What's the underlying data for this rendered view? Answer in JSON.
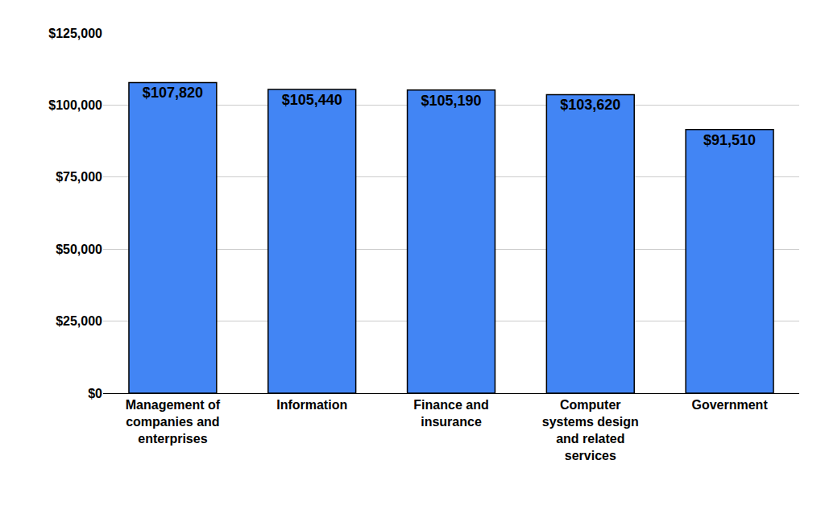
{
  "chart_data": {
    "type": "bar",
    "categories": [
      "Management of companies and enterprises",
      "Information",
      "Finance and insurance",
      "Computer systems design and related services",
      "Government"
    ],
    "values": [
      107820,
      105440,
      105190,
      103620,
      91510
    ],
    "value_labels": [
      "$107,820",
      "$105,440",
      "$105,190",
      "$103,620",
      "$91,510"
    ],
    "color": "#4285f4",
    "ylim": [
      0,
      125000
    ],
    "yticks": [
      {
        "value": 0,
        "label": "$0"
      },
      {
        "value": 25000,
        "label": "$25,000"
      },
      {
        "value": 50000,
        "label": "$50,000"
      },
      {
        "value": 75000,
        "label": "$75,000"
      },
      {
        "value": 100000,
        "label": "$100,000"
      },
      {
        "value": 125000,
        "label": "$125,000"
      }
    ],
    "grid": true,
    "data_labels": true
  }
}
